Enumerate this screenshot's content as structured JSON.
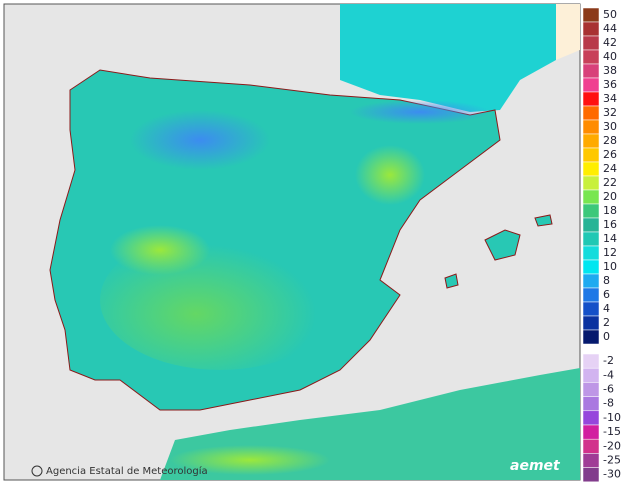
{
  "legend": {
    "ticks": [
      50,
      44,
      42,
      40,
      38,
      36,
      34,
      32,
      30,
      28,
      26,
      24,
      22,
      20,
      18,
      16,
      14,
      12,
      10,
      8,
      6,
      4,
      2,
      0
    ],
    "colors": [
      "#8b3a1a",
      "#a83232",
      "#b83a4a",
      "#c8405a",
      "#d8407a",
      "#f04090",
      "#ff1010",
      "#ff6a00",
      "#ff8c00",
      "#ffaa00",
      "#ffc800",
      "#ffee00",
      "#c8f03c",
      "#78e650",
      "#3cc87a",
      "#28b496",
      "#20c8b4",
      "#14dcdc",
      "#00e6f0",
      "#1eaaf0",
      "#1e78e6",
      "#1450c8",
      "#0a32a0",
      "#061a6e"
    ],
    "neg_ticks": [
      -2,
      -4,
      -6,
      -8,
      -10,
      -15,
      -20,
      -25,
      -30
    ],
    "neg_colors": [
      "#e6d2f5",
      "#d2b4f0",
      "#be96e6",
      "#aa78e0",
      "#9646dc",
      "#d21ea0",
      "#d2328c",
      "#a03c96",
      "#823c8c"
    ]
  },
  "footer": {
    "attribution": "Agencia Estatal de Meteorología",
    "logo": "aemet"
  }
}
